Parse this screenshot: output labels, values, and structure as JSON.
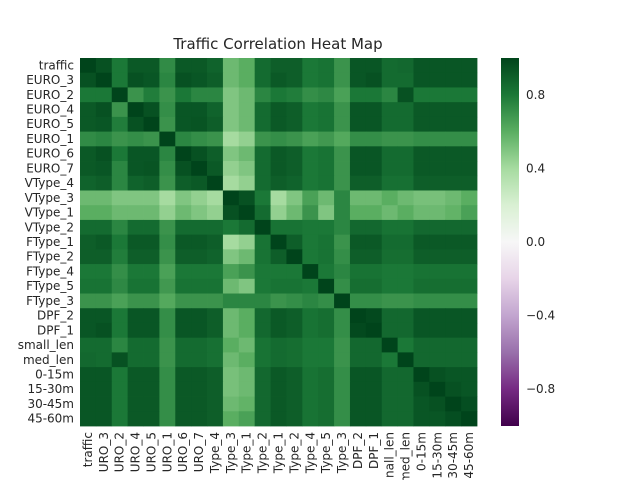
{
  "chart_data": {
    "type": "heatmap",
    "title": "Traffic Correlation Heat Map",
    "xlabel": "",
    "ylabel": "",
    "row_labels": [
      "traffic",
      "EURO_3",
      "EURO_2",
      "EURO_4",
      "EURO_5",
      "EURO_1",
      "EURO_6",
      "EURO_7",
      "VType_4",
      "VType_3",
      "VType_1",
      "VType_2",
      "FType_1",
      "FType_2",
      "FType_4",
      "FType_5",
      "FType_3",
      "DPF_2",
      "DPF_1",
      "small_len",
      "med_len",
      "0-15m",
      "15-30m",
      "30-45m",
      "45-60m"
    ],
    "column_labels": [
      "traffic",
      "URO_3",
      "URO_2",
      "URO_4",
      "URO_5",
      "URO_1",
      "URO_6",
      "URO_7",
      "Type_4",
      "Type_3",
      "Type_1",
      "Type_2",
      "Type_1",
      "Type_2",
      "Type_4",
      "Type_5",
      "Type_3",
      "DPF_2",
      "DPF_1",
      "nall_len",
      "med_len",
      "0-15m",
      "15-30m",
      "30-45m",
      "45-60m"
    ],
    "values": [
      [
        1.0,
        0.95,
        0.8,
        0.92,
        0.92,
        0.73,
        0.92,
        0.92,
        0.88,
        0.55,
        0.6,
        0.85,
        0.9,
        0.9,
        0.8,
        0.82,
        0.7,
        0.93,
        0.93,
        0.85,
        0.86,
        0.93,
        0.93,
        0.93,
        0.93
      ],
      [
        0.95,
        1.0,
        0.8,
        0.95,
        0.93,
        0.75,
        0.95,
        0.93,
        0.9,
        0.55,
        0.6,
        0.85,
        0.92,
        0.9,
        0.8,
        0.82,
        0.7,
        0.93,
        0.95,
        0.85,
        0.85,
        0.93,
        0.93,
        0.93,
        0.93
      ],
      [
        0.8,
        0.8,
        1.0,
        0.7,
        0.78,
        0.7,
        0.8,
        0.75,
        0.75,
        0.5,
        0.55,
        0.75,
        0.8,
        0.78,
        0.72,
        0.74,
        0.65,
        0.8,
        0.8,
        0.75,
        0.95,
        0.8,
        0.8,
        0.8,
        0.8
      ],
      [
        0.92,
        0.95,
        0.7,
        1.0,
        0.95,
        0.72,
        0.93,
        0.93,
        0.88,
        0.5,
        0.55,
        0.85,
        0.92,
        0.9,
        0.8,
        0.82,
        0.7,
        0.93,
        0.93,
        0.85,
        0.85,
        0.92,
        0.92,
        0.92,
        0.92
      ],
      [
        0.92,
        0.93,
        0.78,
        0.95,
        1.0,
        0.7,
        0.93,
        0.94,
        0.9,
        0.5,
        0.55,
        0.85,
        0.92,
        0.9,
        0.8,
        0.82,
        0.7,
        0.93,
        0.93,
        0.85,
        0.85,
        0.92,
        0.92,
        0.92,
        0.92
      ],
      [
        0.73,
        0.75,
        0.7,
        0.72,
        0.7,
        1.0,
        0.75,
        0.72,
        0.7,
        0.4,
        0.45,
        0.7,
        0.72,
        0.7,
        0.65,
        0.68,
        0.62,
        0.72,
        0.72,
        0.7,
        0.7,
        0.72,
        0.72,
        0.72,
        0.72
      ],
      [
        0.92,
        0.95,
        0.8,
        0.93,
        0.93,
        0.75,
        1.0,
        0.95,
        0.9,
        0.5,
        0.55,
        0.85,
        0.92,
        0.9,
        0.8,
        0.82,
        0.7,
        0.93,
        0.93,
        0.85,
        0.85,
        0.92,
        0.92,
        0.92,
        0.92
      ],
      [
        0.92,
        0.93,
        0.75,
        0.93,
        0.94,
        0.72,
        0.95,
        1.0,
        0.92,
        0.45,
        0.5,
        0.85,
        0.92,
        0.9,
        0.8,
        0.82,
        0.7,
        0.93,
        0.93,
        0.85,
        0.85,
        0.92,
        0.92,
        0.92,
        0.92
      ],
      [
        0.88,
        0.9,
        0.75,
        0.88,
        0.9,
        0.7,
        0.9,
        0.92,
        1.0,
        0.4,
        0.45,
        0.85,
        0.9,
        0.88,
        0.8,
        0.82,
        0.7,
        0.9,
        0.9,
        0.83,
        0.83,
        0.9,
        0.9,
        0.9,
        0.9
      ],
      [
        0.55,
        0.55,
        0.5,
        0.5,
        0.5,
        0.4,
        0.5,
        0.45,
        0.4,
        1.0,
        0.95,
        0.8,
        0.4,
        0.5,
        0.65,
        0.55,
        0.75,
        0.55,
        0.55,
        0.6,
        0.55,
        0.52,
        0.52,
        0.55,
        0.6
      ],
      [
        0.6,
        0.6,
        0.55,
        0.55,
        0.55,
        0.45,
        0.55,
        0.5,
        0.45,
        0.95,
        1.0,
        0.85,
        0.45,
        0.55,
        0.7,
        0.5,
        0.75,
        0.6,
        0.6,
        0.55,
        0.6,
        0.55,
        0.55,
        0.58,
        0.65
      ],
      [
        0.85,
        0.85,
        0.75,
        0.85,
        0.85,
        0.7,
        0.85,
        0.85,
        0.85,
        0.8,
        0.85,
        1.0,
        0.82,
        0.82,
        0.8,
        0.8,
        0.75,
        0.86,
        0.86,
        0.82,
        0.82,
        0.86,
        0.86,
        0.86,
        0.86
      ],
      [
        0.9,
        0.92,
        0.8,
        0.92,
        0.92,
        0.72,
        0.92,
        0.92,
        0.9,
        0.4,
        0.45,
        0.82,
        1.0,
        0.9,
        0.8,
        0.82,
        0.7,
        0.92,
        0.92,
        0.85,
        0.85,
        0.92,
        0.92,
        0.92,
        0.92
      ],
      [
        0.9,
        0.9,
        0.78,
        0.9,
        0.9,
        0.7,
        0.9,
        0.9,
        0.88,
        0.5,
        0.55,
        0.82,
        0.9,
        1.0,
        0.8,
        0.82,
        0.72,
        0.9,
        0.9,
        0.84,
        0.84,
        0.9,
        0.9,
        0.9,
        0.9
      ],
      [
        0.8,
        0.8,
        0.72,
        0.8,
        0.8,
        0.65,
        0.8,
        0.8,
        0.8,
        0.65,
        0.7,
        0.8,
        0.8,
        0.8,
        1.0,
        0.8,
        0.75,
        0.82,
        0.82,
        0.8,
        0.8,
        0.82,
        0.82,
        0.82,
        0.82
      ],
      [
        0.82,
        0.82,
        0.74,
        0.82,
        0.82,
        0.68,
        0.82,
        0.82,
        0.82,
        0.55,
        0.5,
        0.8,
        0.82,
        0.82,
        0.8,
        1.0,
        0.72,
        0.84,
        0.84,
        0.8,
        0.8,
        0.84,
        0.84,
        0.84,
        0.84
      ],
      [
        0.7,
        0.7,
        0.65,
        0.7,
        0.7,
        0.62,
        0.7,
        0.7,
        0.7,
        0.75,
        0.75,
        0.75,
        0.7,
        0.72,
        0.75,
        0.72,
        1.0,
        0.72,
        0.72,
        0.7,
        0.7,
        0.72,
        0.72,
        0.72,
        0.72
      ],
      [
        0.93,
        0.93,
        0.8,
        0.93,
        0.93,
        0.72,
        0.93,
        0.93,
        0.9,
        0.55,
        0.6,
        0.86,
        0.92,
        0.9,
        0.82,
        0.84,
        0.72,
        1.0,
        0.98,
        0.86,
        0.86,
        0.93,
        0.93,
        0.93,
        0.93
      ],
      [
        0.93,
        0.95,
        0.8,
        0.93,
        0.93,
        0.72,
        0.93,
        0.93,
        0.9,
        0.55,
        0.6,
        0.86,
        0.92,
        0.9,
        0.82,
        0.84,
        0.72,
        0.98,
        1.0,
        0.86,
        0.86,
        0.93,
        0.93,
        0.93,
        0.93
      ],
      [
        0.85,
        0.85,
        0.75,
        0.85,
        0.85,
        0.7,
        0.85,
        0.85,
        0.83,
        0.6,
        0.55,
        0.82,
        0.85,
        0.84,
        0.8,
        0.8,
        0.7,
        0.86,
        0.86,
        1.0,
        0.8,
        0.86,
        0.86,
        0.86,
        0.86
      ],
      [
        0.86,
        0.85,
        0.95,
        0.85,
        0.85,
        0.7,
        0.85,
        0.85,
        0.83,
        0.55,
        0.6,
        0.82,
        0.85,
        0.84,
        0.8,
        0.8,
        0.7,
        0.86,
        0.86,
        0.8,
        1.0,
        0.86,
        0.86,
        0.86,
        0.86
      ],
      [
        0.93,
        0.93,
        0.8,
        0.92,
        0.92,
        0.72,
        0.92,
        0.92,
        0.9,
        0.52,
        0.55,
        0.86,
        0.92,
        0.9,
        0.82,
        0.84,
        0.72,
        0.93,
        0.93,
        0.86,
        0.86,
        1.0,
        0.95,
        0.93,
        0.93
      ],
      [
        0.93,
        0.93,
        0.8,
        0.92,
        0.92,
        0.72,
        0.92,
        0.92,
        0.9,
        0.52,
        0.55,
        0.86,
        0.92,
        0.9,
        0.82,
        0.84,
        0.72,
        0.93,
        0.93,
        0.86,
        0.86,
        0.95,
        1.0,
        0.95,
        0.93
      ],
      [
        0.93,
        0.93,
        0.8,
        0.92,
        0.92,
        0.72,
        0.92,
        0.92,
        0.9,
        0.55,
        0.58,
        0.86,
        0.92,
        0.9,
        0.82,
        0.84,
        0.72,
        0.93,
        0.93,
        0.86,
        0.86,
        0.93,
        0.95,
        1.0,
        0.96
      ],
      [
        0.93,
        0.93,
        0.8,
        0.92,
        0.92,
        0.72,
        0.92,
        0.92,
        0.9,
        0.6,
        0.65,
        0.86,
        0.92,
        0.9,
        0.82,
        0.84,
        0.72,
        0.93,
        0.93,
        0.86,
        0.86,
        0.93,
        0.93,
        0.96,
        1.0
      ]
    ],
    "vmin": -1.0,
    "vmax": 1.0,
    "colormap": "PRGn",
    "colorbar_ticks": [
      "0.8",
      "0.4",
      "0.0",
      "−0.4",
      "−0.8"
    ],
    "colorbar_tick_values": [
      0.8,
      0.4,
      0.0,
      -0.4,
      -0.8
    ],
    "grid": false
  }
}
